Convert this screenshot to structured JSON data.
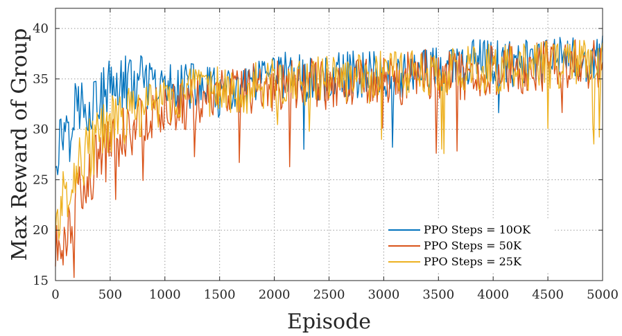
{
  "chart_data": {
    "type": "line",
    "title": "",
    "xlabel": "Episode",
    "ylabel": "Max Reward of Group",
    "xlim": [
      0,
      5000
    ],
    "ylim": [
      15,
      42
    ],
    "xticks": [
      0,
      500,
      1000,
      1500,
      2000,
      2500,
      3000,
      3500,
      4000,
      4500,
      5000
    ],
    "yticks": [
      15,
      20,
      25,
      30,
      35,
      40
    ],
    "xtick_labels": [
      "0",
      "500",
      "1000",
      "1500",
      "2000",
      "2500",
      "3000",
      "3500",
      "4000",
      "4500",
      "5000"
    ],
    "ytick_labels": [
      "15",
      "20",
      "25",
      "30",
      "35",
      "40"
    ],
    "grid": true,
    "legend_position": "bottom-right",
    "series": [
      {
        "name": "PPO Steps = 10OK",
        "color": "#0072BD",
        "x": [
          0,
          100,
          200,
          300,
          400,
          500,
          600,
          700,
          800,
          900,
          1000,
          1100,
          1200,
          1300,
          1400,
          1500,
          1600,
          1700,
          1800,
          1900,
          2000,
          2100,
          2200,
          2300,
          2400,
          2500,
          2600,
          2700,
          2800,
          2900,
          3000,
          3100,
          3200,
          3300,
          3400,
          3500,
          3600,
          3700,
          3800,
          3900,
          4000,
          4100,
          4200,
          4300,
          4400,
          4500,
          4600,
          4700,
          4800,
          4900,
          5000
        ],
        "values": [
          27.5,
          31.0,
          32.5,
          32.5,
          33.0,
          34.0,
          34.5,
          34.5,
          34.5,
          34.0,
          34.0,
          34.5,
          34.5,
          34.0,
          34.0,
          33.5,
          33.5,
          33.5,
          34.5,
          34.5,
          35.0,
          35.5,
          35.0,
          35.0,
          34.5,
          35.0,
          35.5,
          35.5,
          35.5,
          35.5,
          35.5,
          35.5,
          35.5,
          35.5,
          36.0,
          36.0,
          36.0,
          36.0,
          36.5,
          36.5,
          36.5,
          36.5,
          36.5,
          36.5,
          36.5,
          36.5,
          37.0,
          37.0,
          37.0,
          37.0,
          37.0
        ],
        "noise_amplitude": 2.4
      },
      {
        "name": "PPO Steps = 50K",
        "color": "#D95319",
        "x": [
          0,
          100,
          200,
          300,
          400,
          500,
          600,
          700,
          800,
          900,
          1000,
          1100,
          1200,
          1300,
          1400,
          1500,
          1600,
          1700,
          1800,
          1900,
          2000,
          2100,
          2200,
          2300,
          2400,
          2500,
          2600,
          2700,
          2800,
          2900,
          3000,
          3100,
          3200,
          3300,
          3400,
          3500,
          3600,
          3700,
          3800,
          3900,
          4000,
          4100,
          4200,
          4300,
          4400,
          4500,
          4600,
          4700,
          4800,
          4900,
          5000
        ],
        "values": [
          17.5,
          20.0,
          23.0,
          25.0,
          27.0,
          28.5,
          29.5,
          30.5,
          31.0,
          31.5,
          32.0,
          32.5,
          32.5,
          33.0,
          33.0,
          33.5,
          33.5,
          33.5,
          34.0,
          34.0,
          34.5,
          34.5,
          34.5,
          34.5,
          34.5,
          34.5,
          35.0,
          35.0,
          35.0,
          35.0,
          35.0,
          35.0,
          35.0,
          35.5,
          35.5,
          35.5,
          35.5,
          35.5,
          35.5,
          36.0,
          36.0,
          36.0,
          36.0,
          36.0,
          36.0,
          36.5,
          36.5,
          36.5,
          36.5,
          36.5,
          36.5
        ],
        "noise_amplitude": 2.6
      },
      {
        "name": "PPO Steps = 25K",
        "color": "#EDB120",
        "x": [
          0,
          100,
          200,
          300,
          400,
          500,
          600,
          700,
          800,
          900,
          1000,
          1100,
          1200,
          1300,
          1400,
          1500,
          1600,
          1700,
          1800,
          1900,
          2000,
          2100,
          2200,
          2300,
          2400,
          2500,
          2600,
          2700,
          2800,
          2900,
          3000,
          3100,
          3200,
          3300,
          3400,
          3500,
          3600,
          3700,
          3800,
          3900,
          4000,
          4100,
          4200,
          4300,
          4400,
          4500,
          4600,
          4700,
          4800,
          4900,
          5000
        ],
        "values": [
          20.5,
          24.0,
          26.5,
          28.0,
          29.0,
          30.5,
          31.0,
          31.5,
          32.0,
          32.5,
          33.0,
          33.0,
          33.5,
          33.5,
          33.5,
          34.0,
          34.0,
          34.0,
          34.0,
          34.5,
          34.5,
          34.5,
          34.5,
          34.5,
          35.0,
          35.0,
          35.0,
          35.0,
          35.0,
          35.0,
          35.5,
          35.5,
          35.5,
          35.5,
          35.5,
          35.5,
          35.5,
          36.0,
          36.0,
          36.0,
          36.0,
          36.0,
          36.0,
          36.0,
          36.5,
          36.5,
          36.5,
          36.5,
          36.5,
          36.5,
          36.5
        ],
        "noise_amplitude": 2.5
      }
    ]
  }
}
